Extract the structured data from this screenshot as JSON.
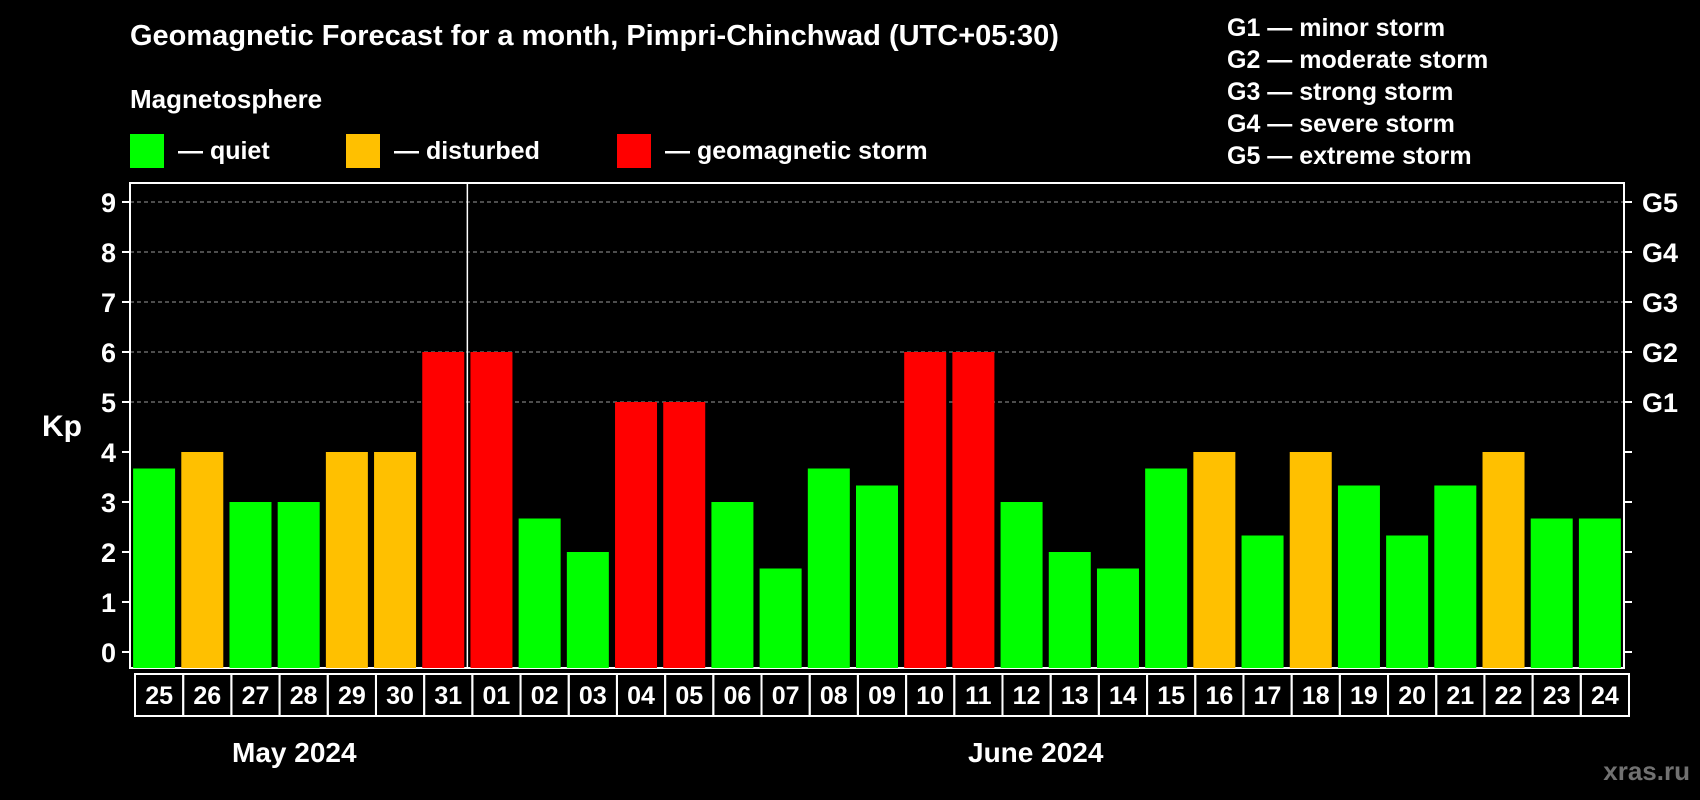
{
  "title": "Geomagnetic Forecast for a month, Pimpri-Chinchwad (UTC+05:30)",
  "subtitle": "Magnetosphere",
  "legend": [
    {
      "label": "— quiet",
      "color": "#00ff00"
    },
    {
      "label": "— disturbed",
      "color": "#ffc000"
    },
    {
      "label": "— geomagnetic storm",
      "color": "#ff0000"
    }
  ],
  "storm_scale": [
    "G1 — minor storm",
    "G2 — moderate storm",
    "G3 — strong storm",
    "G4 — severe storm",
    "G5 — extreme storm"
  ],
  "months": [
    "May 2024",
    "June 2024"
  ],
  "watermark": "xras.ru",
  "chart_data": {
    "type": "bar",
    "ylabel": "Kp",
    "ylim": [
      0,
      9
    ],
    "yticks": [
      "0",
      "1",
      "2",
      "3",
      "4",
      "5",
      "6",
      "7",
      "8",
      "9"
    ],
    "right_ticks": [
      {
        "value": 5,
        "label": "G1"
      },
      {
        "value": 6,
        "label": "G2"
      },
      {
        "value": 7,
        "label": "G3"
      },
      {
        "value": 8,
        "label": "G4"
      },
      {
        "value": 9,
        "label": "G5"
      }
    ],
    "grid": "dashed horizontal at Kp 5-9",
    "categories": [
      "25",
      "26",
      "27",
      "28",
      "29",
      "30",
      "31",
      "01",
      "02",
      "03",
      "04",
      "05",
      "06",
      "07",
      "08",
      "09",
      "10",
      "11",
      "12",
      "13",
      "14",
      "15",
      "16",
      "17",
      "18",
      "19",
      "20",
      "21",
      "22",
      "23",
      "24"
    ],
    "values": [
      3.67,
      4,
      3,
      3,
      4,
      4,
      6,
      6,
      2.67,
      2,
      5,
      5,
      3,
      1.67,
      3.67,
      3.33,
      6,
      6,
      3,
      2,
      1.67,
      3.67,
      4,
      2.33,
      4,
      3.33,
      2.33,
      3.33,
      4,
      2.67,
      2.67
    ],
    "colors": {
      "quiet": "#00ff00",
      "disturbed": "#ffc000",
      "storm": "#ff0000"
    }
  }
}
